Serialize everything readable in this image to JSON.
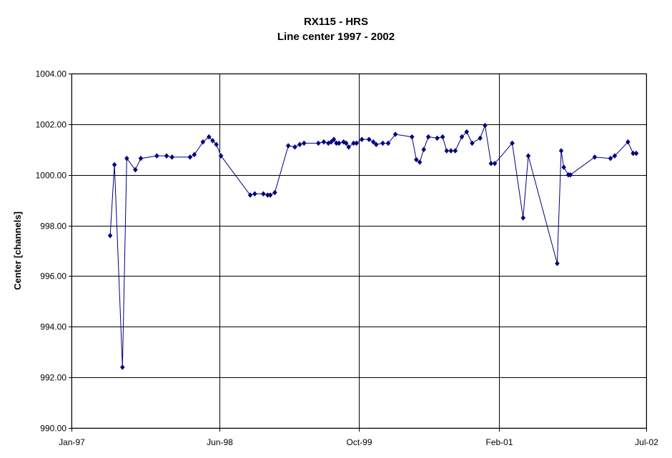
{
  "chart_data": {
    "type": "line",
    "title": "RX115 - HRS",
    "subtitle": "Line center 1997 - 2002",
    "xlabel": "",
    "ylabel": "Center [channels]",
    "xlim": [
      "1997-01-01",
      "2002-07-01"
    ],
    "ylim": [
      990,
      1004
    ],
    "x_tick_labels": [
      "Jan-97",
      "Jun-98",
      "Oct-99",
      "Feb-01",
      "Jul-02"
    ],
    "x_tick_dates": [
      "1997-01-01",
      "1998-06-01",
      "1999-10-01",
      "2001-02-01",
      "2002-07-01"
    ],
    "y_tick_labels": [
      "990.00",
      "992.00",
      "994.00",
      "996.00",
      "998.00",
      "1000.00",
      "1002.00",
      "1004.00"
    ],
    "y_ticks": [
      990,
      992,
      994,
      996,
      998,
      1000,
      1002,
      1004
    ],
    "grid": true,
    "legend": "none",
    "colors": {
      "series": "#000080",
      "grid": "#000000",
      "plot_border": "#808080"
    },
    "series": [
      {
        "marker": "diamond",
        "x": [
          "1997-05-16",
          "1997-05-31",
          "1997-06-28",
          "1997-07-13",
          "1997-08-12",
          "1997-08-31",
          "1997-10-26",
          "1997-11-29",
          "1997-12-18",
          "1998-02-19",
          "1998-03-06",
          "1998-04-05",
          "1998-04-26",
          "1998-05-09",
          "1998-05-22",
          "1998-06-07",
          "1998-09-17",
          "1998-10-03",
          "1998-11-02",
          "1998-11-17",
          "1998-11-26",
          "1998-12-12",
          "1999-01-28",
          "1999-02-20",
          "1999-03-09",
          "1999-03-24",
          "1999-05-13",
          "1999-06-01",
          "1999-06-17",
          "1999-06-27",
          "1999-07-06",
          "1999-07-15",
          "1999-07-24",
          "1999-08-09",
          "1999-08-18",
          "1999-08-27",
          "1999-09-13",
          "1999-09-23",
          "1999-10-12",
          "1999-11-06",
          "1999-11-21",
          "1999-12-01",
          "1999-12-24",
          "2000-01-12",
          "2000-02-06",
          "2000-04-04",
          "2000-04-19",
          "2000-05-01",
          "2000-05-15",
          "2000-05-31",
          "2000-07-01",
          "2000-07-20",
          "2000-08-03",
          "2000-08-18",
          "2000-09-02",
          "2000-09-25",
          "2000-10-12",
          "2000-10-31",
          "2000-11-28",
          "2000-12-15",
          "2001-01-05",
          "2001-01-18",
          "2001-03-20",
          "2001-04-27",
          "2001-05-15",
          "2001-08-24",
          "2001-09-07",
          "2001-09-16",
          "2001-10-02",
          "2001-10-09",
          "2002-01-02",
          "2002-02-26",
          "2002-03-13",
          "2002-04-28",
          "2002-05-16",
          "2002-05-27"
        ],
        "y": [
          997.6,
          1000.4,
          992.4,
          1000.65,
          1000.2,
          1000.65,
          1000.75,
          1000.75,
          1000.7,
          1000.7,
          1000.8,
          1001.3,
          1001.5,
          1001.35,
          1001.2,
          1000.75,
          999.2,
          999.25,
          999.25,
          999.2,
          999.2,
          999.3,
          1001.15,
          1001.1,
          1001.2,
          1001.25,
          1001.25,
          1001.3,
          1001.25,
          1001.3,
          1001.4,
          1001.25,
          1001.25,
          1001.3,
          1001.25,
          1001.1,
          1001.25,
          1001.25,
          1001.4,
          1001.4,
          1001.3,
          1001.2,
          1001.25,
          1001.25,
          1001.6,
          1001.5,
          1000.6,
          1000.5,
          1001.0,
          1001.5,
          1001.45,
          1001.5,
          1000.95,
          1000.95,
          1000.95,
          1001.5,
          1001.7,
          1001.25,
          1001.45,
          1001.95,
          1000.45,
          1000.45,
          1001.25,
          998.3,
          1000.75,
          996.5,
          1000.95,
          1000.3,
          1000.0,
          1000.0,
          1000.7,
          1000.65,
          1000.75,
          1001.3,
          1000.85,
          1000.85
        ]
      }
    ]
  }
}
